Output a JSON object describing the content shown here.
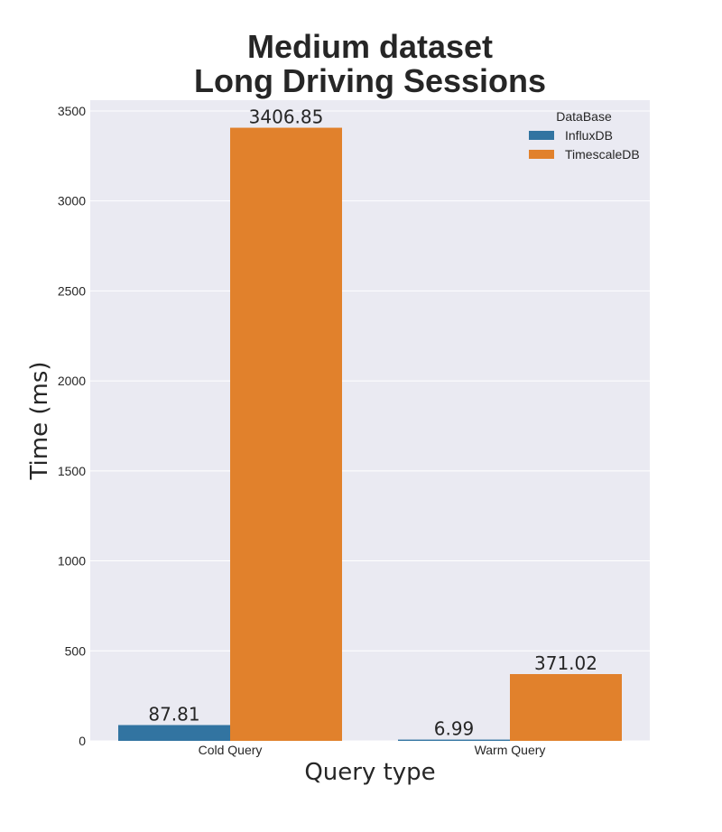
{
  "chart_data": {
    "type": "bar",
    "title": [
      "Medium dataset",
      "Long Driving Sessions"
    ],
    "xlabel": "Query type",
    "ylabel": "Time (ms)",
    "categories": [
      "Cold Query",
      "Warm Query"
    ],
    "series": [
      {
        "name": "InfluxDB",
        "values": [
          87.81,
          6.99
        ],
        "color": "#3274a1",
        "labels": [
          "87.81",
          "6.99"
        ]
      },
      {
        "name": "TimescaleDB",
        "values": [
          3406.85,
          371.02
        ],
        "color": "#e1812c",
        "labels": [
          "3406.85",
          "371.02"
        ]
      }
    ],
    "ylim": [
      0,
      3560
    ],
    "yticks": [
      0,
      500,
      1000,
      1500,
      2000,
      2500,
      3000,
      3500
    ],
    "ytick_labels": [
      "0",
      "500",
      "1000",
      "1500",
      "2000",
      "2500",
      "3000",
      "3500"
    ],
    "legend": {
      "title": "DataBase",
      "position": "top-right"
    },
    "grid": true,
    "background": "#eaeaf2",
    "grid_color": "#ffffff"
  }
}
